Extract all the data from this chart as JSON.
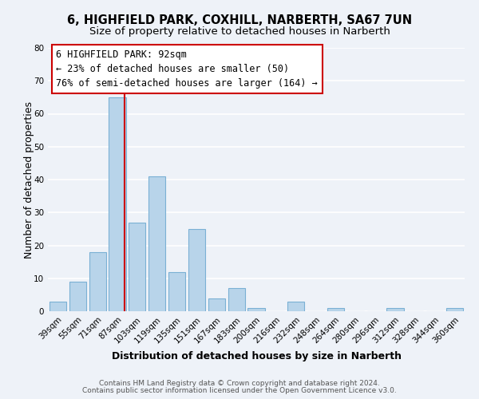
{
  "title": "6, HIGHFIELD PARK, COXHILL, NARBERTH, SA67 7UN",
  "subtitle": "Size of property relative to detached houses in Narberth",
  "xlabel": "Distribution of detached houses by size in Narberth",
  "ylabel": "Number of detached properties",
  "bin_labels": [
    "39sqm",
    "55sqm",
    "71sqm",
    "87sqm",
    "103sqm",
    "119sqm",
    "135sqm",
    "151sqm",
    "167sqm",
    "183sqm",
    "200sqm",
    "216sqm",
    "232sqm",
    "248sqm",
    "264sqm",
    "280sqm",
    "296sqm",
    "312sqm",
    "328sqm",
    "344sqm",
    "360sqm"
  ],
  "bar_heights": [
    3,
    9,
    18,
    65,
    27,
    41,
    12,
    25,
    4,
    7,
    1,
    0,
    3,
    0,
    1,
    0,
    0,
    1,
    0,
    0,
    1
  ],
  "bar_color": "#b8d4ea",
  "bar_edge_color": "#7ab0d4",
  "vline_x_index": 3,
  "vline_color": "#cc0000",
  "ylim": [
    0,
    80
  ],
  "yticks": [
    0,
    10,
    20,
    30,
    40,
    50,
    60,
    70,
    80
  ],
  "annotation_title": "6 HIGHFIELD PARK: 92sqm",
  "annotation_line1": "← 23% of detached houses are smaller (50)",
  "annotation_line2": "76% of semi-detached houses are larger (164) →",
  "annotation_box_color": "#ffffff",
  "annotation_box_edge": "#cc0000",
  "footer_line1": "Contains HM Land Registry data © Crown copyright and database right 2024.",
  "footer_line2": "Contains public sector information licensed under the Open Government Licence v3.0.",
  "background_color": "#eef2f8",
  "grid_color": "#ffffff",
  "title_fontsize": 10.5,
  "subtitle_fontsize": 9.5,
  "axis_label_fontsize": 9,
  "tick_fontsize": 7.5,
  "footer_fontsize": 6.5,
  "annotation_fontsize": 8.5
}
